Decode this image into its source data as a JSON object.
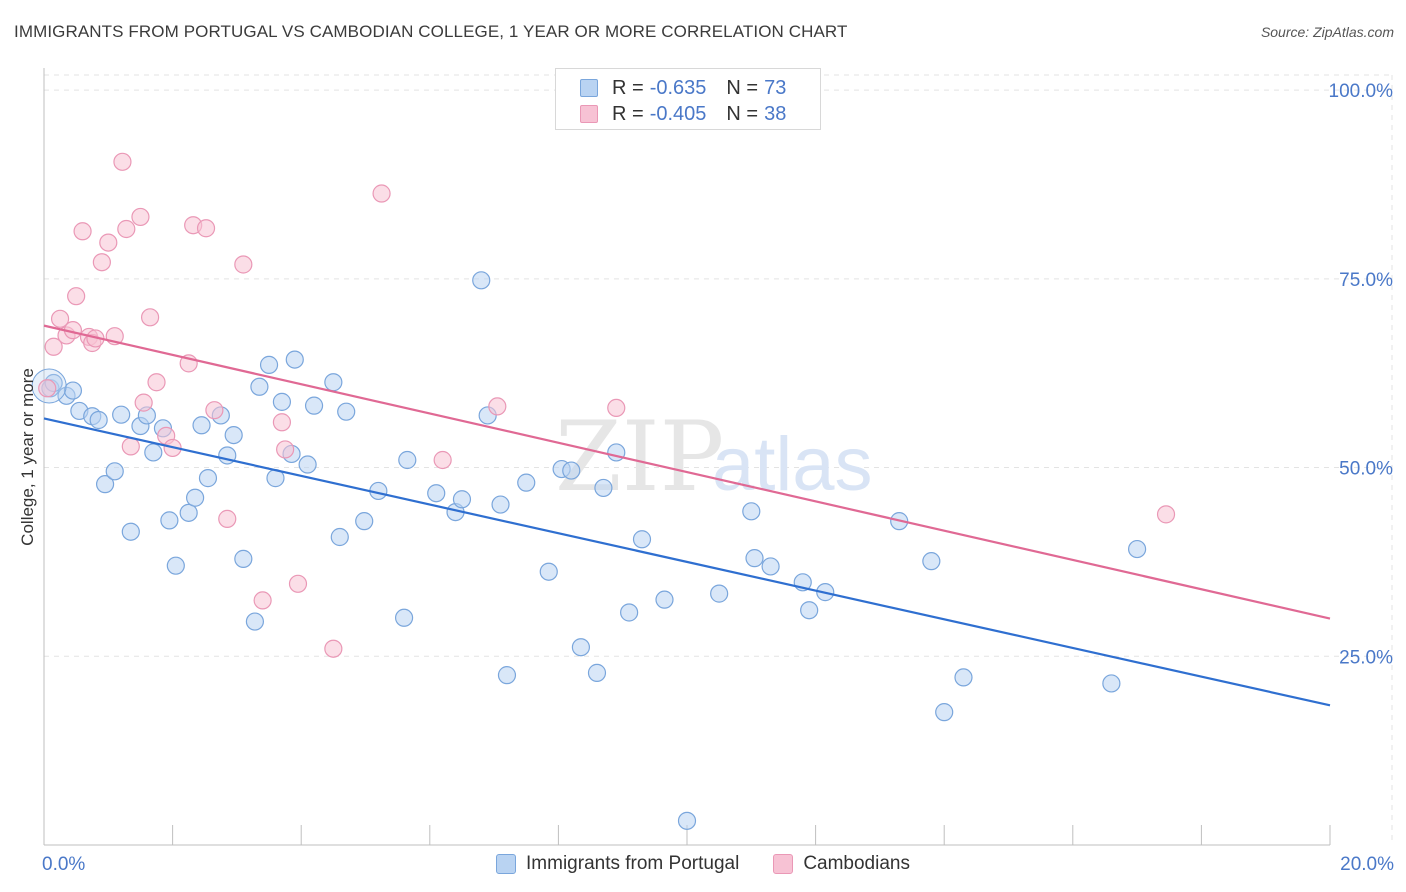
{
  "header": {
    "title": "IMMIGRANTS FROM PORTUGAL VS CAMBODIAN COLLEGE, 1 YEAR OR MORE CORRELATION CHART",
    "source": "Source: ZipAtlas.com"
  },
  "watermark": {
    "zip": "ZIP",
    "atlas": "atlas"
  },
  "legend": {
    "r_label": "R =",
    "n_label": "N =",
    "rows": [
      {
        "r": "-0.635",
        "n": "73"
      },
      {
        "r": "-0.405",
        "n": "38"
      }
    ]
  },
  "colors": {
    "portugal_fill": "#b9d3f2",
    "portugal_stroke": "#7aa6dc",
    "portugal_line": "#2f6fd0",
    "cambodian_fill": "#f7c2d4",
    "cambodian_stroke": "#ea98b6",
    "cambodian_line": "#e06994",
    "axis_label": "#4a78c8",
    "grid": "#e3e3e3"
  },
  "chart_data": {
    "type": "scatter",
    "title": "IMMIGRANTS FROM PORTUGAL VS CAMBODIAN COLLEGE, 1 YEAR OR MORE CORRELATION CHART",
    "xlabel": "",
    "ylabel": "College, 1 year or more",
    "xlim": [
      0,
      20
    ],
    "ylim": [
      0,
      102
    ],
    "x_tick_labels": [
      {
        "value": 0,
        "label": "0.0%"
      },
      {
        "value": 20,
        "label": "20.0%"
      }
    ],
    "x_minor_ticks": [
      0,
      2,
      4,
      6,
      8,
      10,
      12,
      14,
      16,
      18,
      20
    ],
    "y_tick_labels": [
      {
        "value": 25,
        "label": "25.0%"
      },
      {
        "value": 50,
        "label": "50.0%"
      },
      {
        "value": 75,
        "label": "75.0%"
      },
      {
        "value": 100,
        "label": "100.0%"
      }
    ],
    "grid": true,
    "legend_position": "top-center",
    "series": [
      {
        "name": "Immigrants from Portugal",
        "r": -0.635,
        "n": 73,
        "trend": {
          "x": [
            0,
            20
          ],
          "y": [
            56.5,
            18.5
          ]
        },
        "points": [
          [
            0.1,
            60.5
          ],
          [
            0.15,
            61.2
          ],
          [
            0.35,
            59.5
          ],
          [
            0.45,
            60.2
          ],
          [
            0.55,
            57.5
          ],
          [
            0.75,
            56.8
          ],
          [
            0.85,
            56.3
          ],
          [
            0.95,
            47.8
          ],
          [
            1.1,
            49.5
          ],
          [
            1.2,
            57.0
          ],
          [
            1.35,
            41.5
          ],
          [
            1.5,
            55.5
          ],
          [
            1.6,
            56.9
          ],
          [
            1.7,
            52.0
          ],
          [
            1.85,
            55.2
          ],
          [
            1.95,
            43.0
          ],
          [
            2.05,
            37.0
          ],
          [
            2.25,
            44.0
          ],
          [
            2.35,
            46.0
          ],
          [
            2.45,
            55.6
          ],
          [
            2.55,
            48.6
          ],
          [
            2.75,
            56.9
          ],
          [
            2.85,
            51.6
          ],
          [
            2.95,
            54.3
          ],
          [
            3.1,
            37.9
          ],
          [
            3.28,
            29.6
          ],
          [
            3.35,
            60.7
          ],
          [
            3.5,
            63.6
          ],
          [
            3.6,
            48.6
          ],
          [
            3.7,
            58.7
          ],
          [
            3.85,
            51.8
          ],
          [
            3.9,
            64.3
          ],
          [
            4.1,
            50.4
          ],
          [
            4.2,
            58.2
          ],
          [
            4.5,
            61.3
          ],
          [
            4.6,
            40.8
          ],
          [
            4.7,
            57.4
          ],
          [
            4.98,
            42.9
          ],
          [
            5.2,
            46.9
          ],
          [
            5.6,
            30.1
          ],
          [
            5.65,
            51.0
          ],
          [
            6.1,
            46.6
          ],
          [
            6.4,
            44.1
          ],
          [
            6.5,
            45.8
          ],
          [
            6.8,
            74.8
          ],
          [
            6.9,
            56.9
          ],
          [
            7.1,
            45.1
          ],
          [
            7.2,
            22.5
          ],
          [
            7.5,
            48.0
          ],
          [
            7.85,
            36.2
          ],
          [
            8.05,
            49.8
          ],
          [
            8.2,
            49.6
          ],
          [
            8.35,
            26.2
          ],
          [
            8.6,
            22.8
          ],
          [
            8.7,
            47.3
          ],
          [
            8.9,
            52.0
          ],
          [
            9.1,
            30.8
          ],
          [
            9.3,
            40.5
          ],
          [
            9.65,
            32.5
          ],
          [
            10.0,
            3.2
          ],
          [
            10.5,
            33.3
          ],
          [
            11.0,
            44.2
          ],
          [
            11.05,
            38.0
          ],
          [
            11.3,
            36.9
          ],
          [
            11.8,
            34.8
          ],
          [
            11.9,
            31.1
          ],
          [
            12.15,
            33.5
          ],
          [
            13.3,
            42.9
          ],
          [
            13.8,
            37.6
          ],
          [
            14.0,
            17.6
          ],
          [
            14.3,
            22.2
          ],
          [
            16.6,
            21.4
          ],
          [
            17.0,
            39.2
          ]
        ]
      },
      {
        "name": "Cambodians",
        "r": -0.405,
        "n": 38,
        "trend": {
          "x": [
            0,
            20
          ],
          "y": [
            68.8,
            30.0
          ]
        },
        "points": [
          [
            0.05,
            60.5
          ],
          [
            0.15,
            66.0
          ],
          [
            0.25,
            69.7
          ],
          [
            0.35,
            67.5
          ],
          [
            0.45,
            68.2
          ],
          [
            0.5,
            72.7
          ],
          [
            0.6,
            81.3
          ],
          [
            0.7,
            67.3
          ],
          [
            0.75,
            66.5
          ],
          [
            0.8,
            67.1
          ],
          [
            0.9,
            77.2
          ],
          [
            1.0,
            79.8
          ],
          [
            1.1,
            67.4
          ],
          [
            1.22,
            90.5
          ],
          [
            1.28,
            81.6
          ],
          [
            1.35,
            52.8
          ],
          [
            1.5,
            83.2
          ],
          [
            1.55,
            58.6
          ],
          [
            1.65,
            69.9
          ],
          [
            1.75,
            61.3
          ],
          [
            1.9,
            54.2
          ],
          [
            2.0,
            52.6
          ],
          [
            2.25,
            63.8
          ],
          [
            2.32,
            82.1
          ],
          [
            2.52,
            81.7
          ],
          [
            2.65,
            57.6
          ],
          [
            2.85,
            43.2
          ],
          [
            3.1,
            76.9
          ],
          [
            3.4,
            32.4
          ],
          [
            3.7,
            56.0
          ],
          [
            3.75,
            52.4
          ],
          [
            3.95,
            34.6
          ],
          [
            4.5,
            26.0
          ],
          [
            5.25,
            86.3
          ],
          [
            6.2,
            51.0
          ],
          [
            7.05,
            58.1
          ],
          [
            8.9,
            57.9
          ],
          [
            17.45,
            43.8
          ]
        ]
      }
    ]
  },
  "bottom_legend": {
    "items": [
      "Immigrants from Portugal",
      "Cambodians"
    ]
  }
}
